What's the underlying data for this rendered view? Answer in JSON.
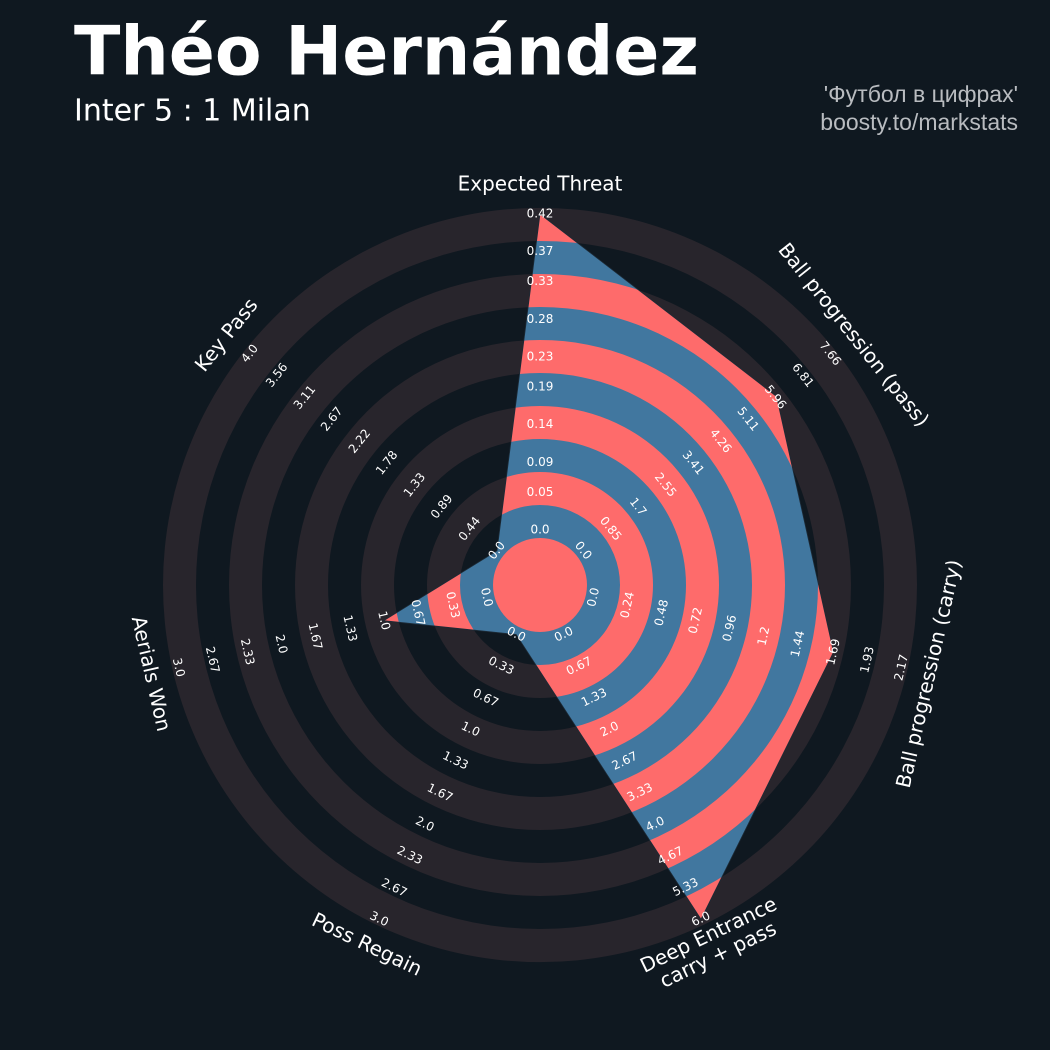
{
  "chart_data": {
    "type": "radar",
    "title": "Théo Hernández",
    "subtitle": "Inter 5 : 1 Milan",
    "credits": [
      "'Футбол в цифрах'",
      "boosty.to/markstats"
    ],
    "params": [
      "Expected Threat",
      "Ball progression (pass)",
      "Ball progression (carry)",
      [
        "Deep Entrance",
        "carry + pass"
      ],
      "Poss Regain",
      "Aerials Won",
      "Key Pass"
    ],
    "ranges": [
      [
        0,
        0.42
      ],
      [
        0,
        7.66
      ],
      [
        0,
        2.17
      ],
      [
        0,
        6
      ],
      [
        0,
        3
      ],
      [
        0,
        3
      ],
      [
        0,
        4
      ]
    ],
    "ticks": [
      [
        {
          "value": 0,
          "label": "0.0"
        },
        0.05,
        0.09,
        0.14,
        0.19,
        0.23,
        0.28,
        0.33,
        0.37,
        0.42
      ],
      [
        {
          "value": 0,
          "label": "0.0"
        },
        0.85,
        1.7,
        2.55,
        3.41,
        4.26,
        5.11,
        5.96,
        6.81,
        7.66
      ],
      [
        {
          "value": 0,
          "label": "0.0"
        },
        0.24,
        0.48,
        0.72,
        0.96,
        1.2,
        1.44,
        1.69,
        1.93,
        2.17
      ],
      [
        {
          "value": 0,
          "label": "0.0"
        },
        0.67,
        1.33,
        {
          "value": 2,
          "label": "2.0"
        },
        2.67,
        3.33,
        {
          "value": 4,
          "label": "4.0"
        },
        4.67,
        5.33,
        {
          "value": 6,
          "label": "6.0"
        }
      ],
      [
        {
          "value": 0,
          "label": "0.0"
        },
        0.33,
        0.67,
        {
          "value": 1,
          "label": "1.0"
        },
        1.33,
        1.67,
        {
          "value": 2,
          "label": "2.0"
        },
        2.33,
        2.67,
        {
          "value": 3,
          "label": "3.0"
        }
      ],
      [
        {
          "value": 0,
          "label": "0.0"
        },
        0.33,
        0.67,
        {
          "value": 1,
          "label": "1.0"
        },
        1.33,
        1.67,
        {
          "value": 2,
          "label": "2.0"
        },
        2.33,
        2.67,
        {
          "value": 3,
          "label": "3.0"
        }
      ],
      [
        {
          "value": 0,
          "label": "0.0"
        },
        0.44,
        0.89,
        1.33,
        1.78,
        2.22,
        2.67,
        3.11,
        3.56,
        {
          "value": 4,
          "label": "4.0"
        }
      ]
    ],
    "values": [
      0.42,
      6.0,
      1.69,
      6.0,
      0.0,
      1.0,
      0.0
    ],
    "color": "#41779f",
    "alt_color": "#fe6b6b",
    "ring_color": "#28252c"
  }
}
